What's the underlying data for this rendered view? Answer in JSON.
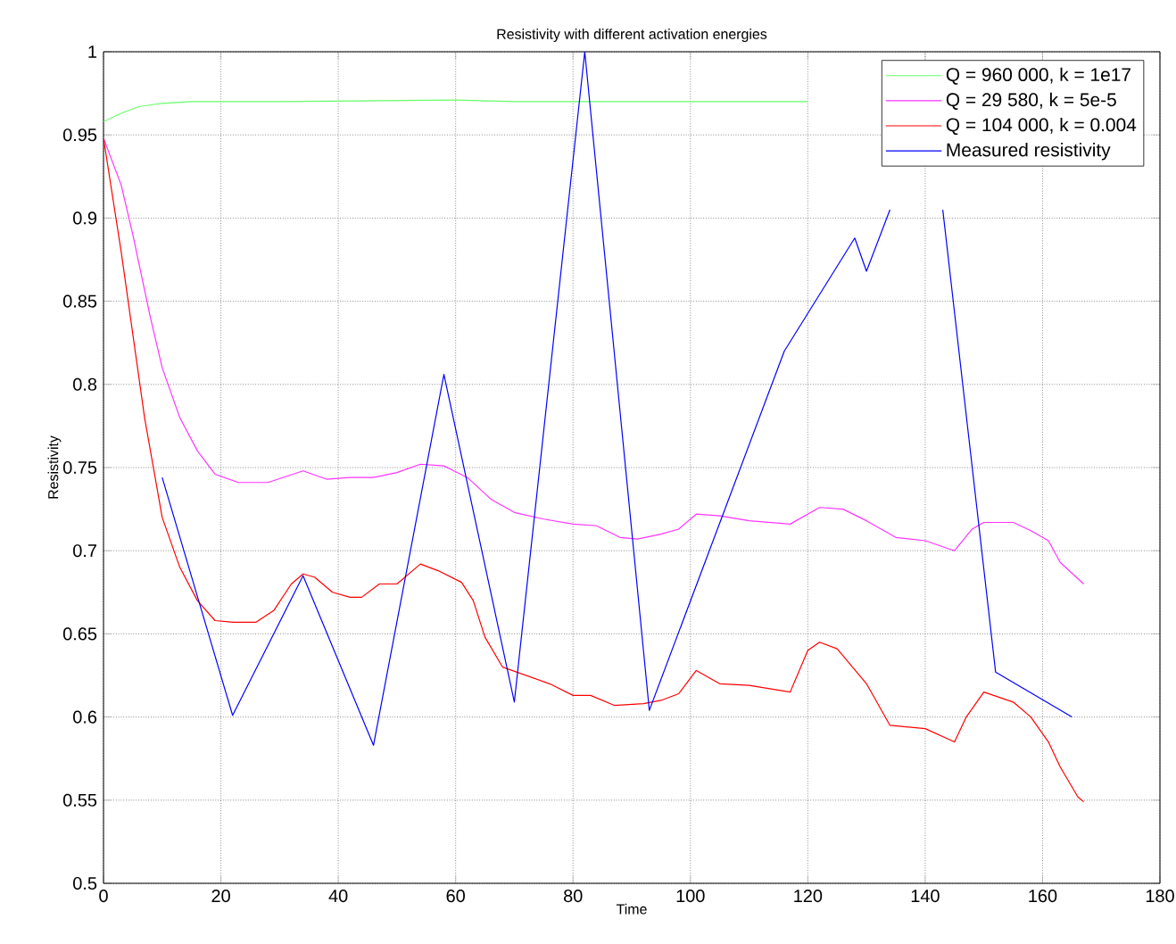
{
  "chart_data": {
    "type": "line",
    "title": "Resistivity with different activation energies",
    "xlabel": "Time",
    "ylabel": "Resistivity",
    "xlim": [
      0,
      180
    ],
    "ylim": [
      0.5,
      1
    ],
    "xticks": [
      0,
      20,
      40,
      60,
      80,
      100,
      120,
      140,
      160,
      180
    ],
    "yticks": [
      0.5,
      0.55,
      0.6,
      0.65,
      0.7,
      0.75,
      0.8,
      0.85,
      0.9,
      0.95,
      1
    ],
    "grid": true,
    "legend": "top right",
    "line_style": "solid",
    "series": [
      {
        "name": "Q = 960 000, k = 1e17",
        "color": "#66ff66",
        "x": [
          0,
          3,
          6,
          10,
          15,
          30,
          60,
          70,
          120
        ],
        "values": [
          0.958,
          0.963,
          0.967,
          0.969,
          0.97,
          0.97,
          0.971,
          0.97,
          0.97
        ]
      },
      {
        "name": "Q = 29 580, k = 5e-5",
        "color": "#ff33ff",
        "x": [
          0,
          3,
          5,
          8,
          10,
          13,
          16,
          19,
          23,
          28,
          34,
          38,
          42,
          46,
          50,
          54,
          58,
          62,
          66,
          70,
          75,
          80,
          84,
          88,
          91,
          95,
          98,
          101,
          105,
          110,
          117,
          122,
          126,
          130,
          135,
          140,
          145,
          148,
          150,
          155,
          158,
          161,
          163,
          167
        ],
        "values": [
          0.948,
          0.92,
          0.89,
          0.84,
          0.81,
          0.78,
          0.76,
          0.746,
          0.741,
          0.741,
          0.748,
          0.743,
          0.744,
          0.744,
          0.747,
          0.752,
          0.751,
          0.744,
          0.731,
          0.723,
          0.719,
          0.716,
          0.715,
          0.708,
          0.707,
          0.71,
          0.713,
          0.722,
          0.721,
          0.718,
          0.716,
          0.726,
          0.725,
          0.718,
          0.708,
          0.706,
          0.7,
          0.713,
          0.717,
          0.717,
          0.712,
          0.706,
          0.693,
          0.68
        ]
      },
      {
        "name": "Q = 104 000, k = 0.004",
        "color": "#ff0000",
        "x": [
          0,
          3,
          5,
          7,
          10,
          13,
          16,
          19,
          22,
          26,
          29,
          32,
          34,
          36,
          39,
          42,
          44,
          47,
          50,
          54,
          57,
          61,
          63,
          65,
          68,
          72,
          76,
          80,
          83,
          87,
          92,
          95,
          98,
          101,
          105,
          110,
          117,
          120,
          122,
          125,
          130,
          134,
          140,
          145,
          147,
          150,
          155,
          158,
          161,
          163,
          166,
          167
        ],
        "values": [
          0.948,
          0.88,
          0.83,
          0.78,
          0.72,
          0.69,
          0.67,
          0.658,
          0.657,
          0.657,
          0.664,
          0.68,
          0.686,
          0.684,
          0.675,
          0.672,
          0.672,
          0.68,
          0.68,
          0.692,
          0.688,
          0.681,
          0.67,
          0.648,
          0.63,
          0.625,
          0.62,
          0.613,
          0.613,
          0.607,
          0.608,
          0.61,
          0.614,
          0.628,
          0.62,
          0.619,
          0.615,
          0.64,
          0.645,
          0.641,
          0.62,
          0.595,
          0.593,
          0.585,
          0.6,
          0.615,
          0.609,
          0.6,
          0.585,
          0.57,
          0.552,
          0.549
        ]
      },
      {
        "name": "Measured resistivity",
        "color": "#0000ff",
        "x": [
          10,
          22,
          34,
          46,
          58,
          70,
          82,
          93,
          116,
          128,
          130,
          134,
          138,
          143,
          152,
          165
        ],
        "values": [
          0.744,
          0.601,
          0.685,
          0.583,
          0.806,
          0.609,
          1.0,
          0.604,
          0.82,
          0.888,
          0.868,
          0.905,
          null,
          0.905,
          0.627,
          0.6
        ]
      }
    ]
  }
}
